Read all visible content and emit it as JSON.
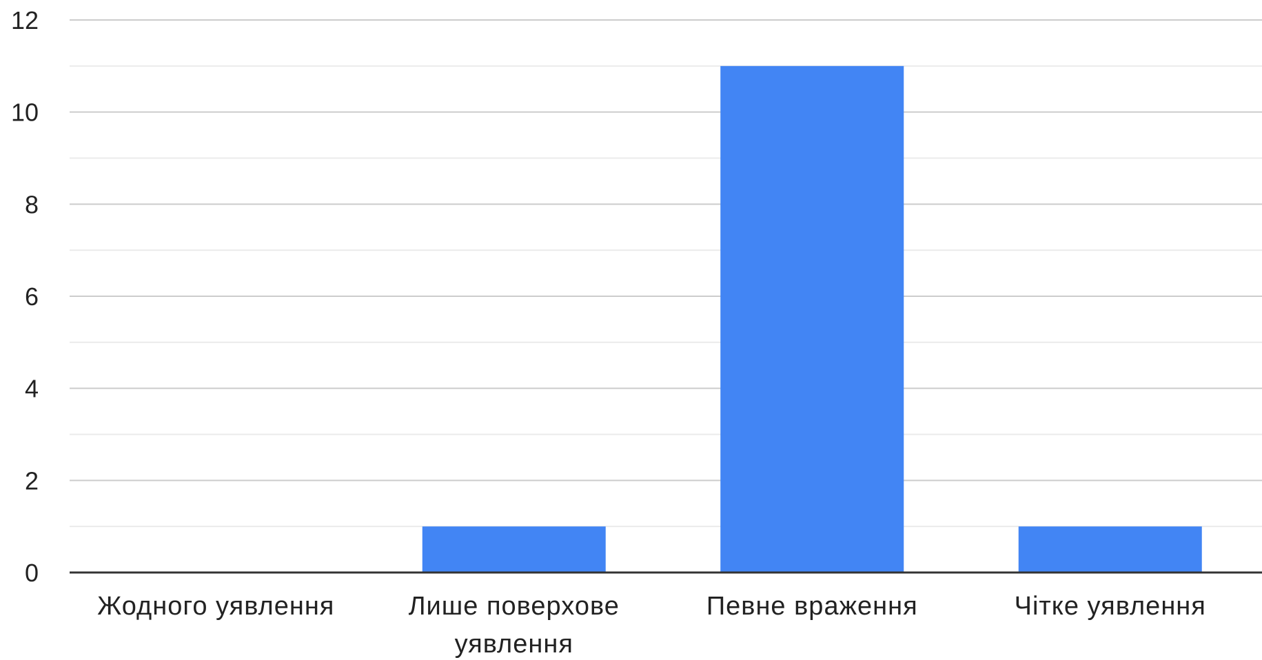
{
  "chart_data": {
    "type": "bar",
    "title": "",
    "xlabel": "",
    "ylabel": "",
    "categories": [
      [
        "Жодного уявлення"
      ],
      [
        "Лише поверхове",
        "уявлення"
      ],
      [
        "Певне враження"
      ],
      [
        "Чітке уявлення"
      ]
    ],
    "values": [
      0,
      1,
      11,
      1
    ],
    "ylim": [
      0,
      12
    ],
    "yticks": [
      0,
      2,
      4,
      6,
      8,
      10,
      12
    ],
    "ytick_labels": [
      "0",
      "2",
      "4",
      "6",
      "8",
      "10",
      "12"
    ],
    "minor_grid_step": 1,
    "grid": true,
    "legend": "none",
    "colors": {
      "bar": "#4285f4",
      "grid_major": "#cccccc",
      "grid_minor": "#ebebeb",
      "baseline": "#333333",
      "text": "#222222"
    }
  }
}
